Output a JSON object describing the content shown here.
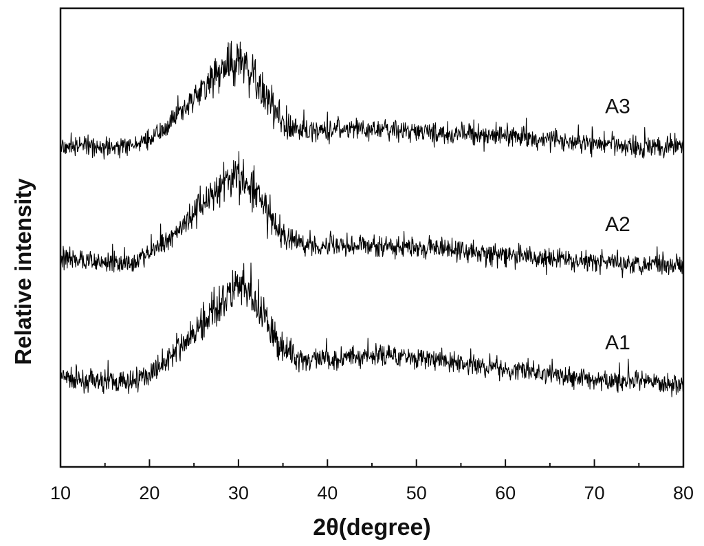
{
  "chart_data": {
    "type": "line",
    "title": "",
    "xlabel": "2θ(degree)",
    "ylabel": "Relative intensity",
    "xlim": [
      10,
      80
    ],
    "ylim": [
      0,
      100
    ],
    "xticks": [
      10,
      20,
      30,
      40,
      50,
      60,
      70,
      80
    ],
    "y_ticks_labeled": false,
    "grid": false,
    "legend": "none",
    "line_color": "#000000",
    "series": [
      {
        "name": "A1",
        "x": [
          10,
          12,
          14,
          16,
          18,
          20,
          22,
          24,
          26,
          28,
          29,
          30,
          31,
          32,
          34,
          36,
          38,
          40,
          42,
          44,
          46,
          48,
          50,
          52,
          54,
          56,
          58,
          60,
          62,
          64,
          66,
          68,
          70,
          72,
          74,
          76,
          78,
          80
        ],
        "y": [
          19.5,
          19.0,
          18.7,
          18.4,
          18.5,
          20.4,
          23.3,
          27.2,
          31.1,
          35.9,
          37.9,
          38.8,
          37.9,
          35.0,
          28.2,
          24.3,
          23.3,
          23.3,
          23.8,
          24.3,
          24.3,
          24.3,
          23.8,
          23.3,
          22.8,
          22.3,
          21.8,
          21.4,
          20.9,
          20.4,
          19.9,
          19.4,
          19.0,
          18.8,
          18.5,
          18.4,
          18.2,
          18.0
        ]
      },
      {
        "name": "A2",
        "x": [
          10,
          12,
          14,
          16,
          18,
          20,
          22,
          24,
          26,
          28,
          29,
          30,
          31,
          32,
          34,
          36,
          38,
          40,
          42,
          44,
          46,
          48,
          50,
          52,
          54,
          56,
          58,
          60,
          62,
          64,
          66,
          68,
          70,
          72,
          74,
          76,
          78,
          80
        ],
        "y": [
          45.3,
          45.0,
          44.8,
          44.6,
          44.7,
          46.5,
          49.4,
          53.2,
          57.1,
          61.0,
          62.5,
          63.0,
          62.0,
          59.0,
          52.7,
          49.3,
          48.4,
          48.4,
          48.4,
          48.4,
          47.9,
          47.9,
          47.9,
          47.5,
          47.5,
          47.0,
          46.5,
          46.0,
          45.8,
          45.5,
          45.3,
          45.0,
          44.8,
          44.6,
          44.5,
          44.4,
          44.3,
          44.2
        ]
      },
      {
        "name": "A3",
        "x": [
          10,
          12,
          14,
          16,
          18,
          20,
          22,
          24,
          26,
          28,
          29,
          30,
          31,
          32,
          34,
          36,
          38,
          40,
          42,
          44,
          46,
          48,
          50,
          52,
          54,
          56,
          58,
          60,
          62,
          64,
          66,
          68,
          70,
          72,
          74,
          76,
          78,
          80
        ],
        "y": [
          70.3,
          70.0,
          69.7,
          69.6,
          69.9,
          71.7,
          74.6,
          78.5,
          82.4,
          86.3,
          87.8,
          88.2,
          87.2,
          84.1,
          77.5,
          73.6,
          73.2,
          73.6,
          73.9,
          73.6,
          73.6,
          73.2,
          73.2,
          72.7,
          72.7,
          72.7,
          72.2,
          72.2,
          71.7,
          71.4,
          71.2,
          70.8,
          70.5,
          70.3,
          70.0,
          69.9,
          69.8,
          69.7
        ]
      }
    ]
  }
}
